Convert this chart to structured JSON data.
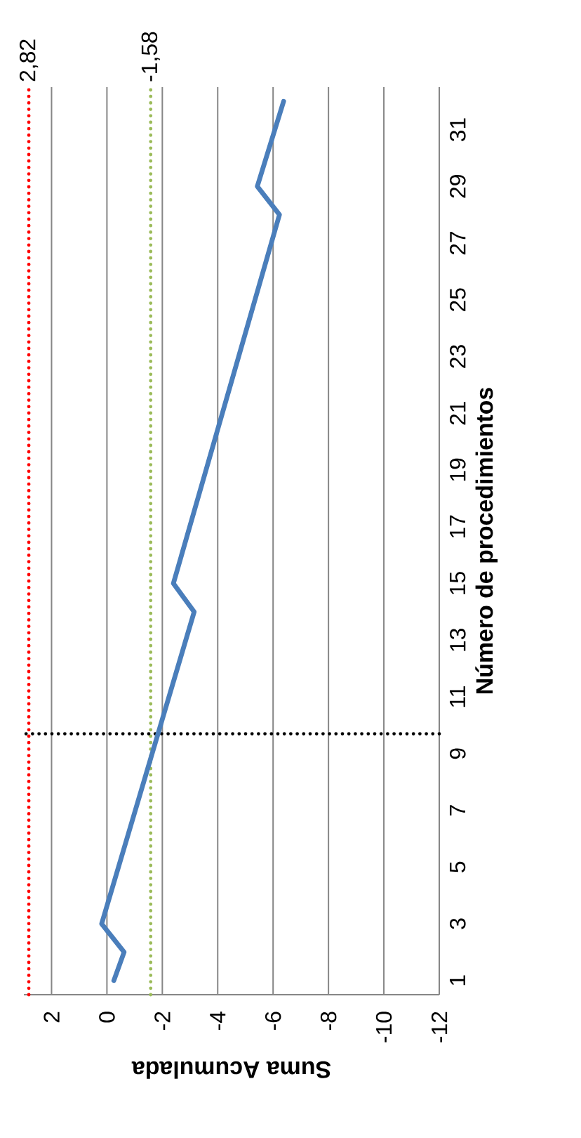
{
  "chart_data": {
    "type": "line",
    "xlabel": "Suma Acumulada",
    "ylabel": "Número de procedimientos",
    "x": [
      -0.25,
      -0.62,
      0.19,
      -3.15,
      -2.4,
      -6.23,
      -5.43,
      -6.38
    ],
    "values": [
      1,
      2,
      3,
      14,
      15,
      28,
      29,
      32
    ],
    "color": "#4a7ebb",
    "xlim": [
      3,
      -12
    ],
    "xticks": [
      {
        "value": 2,
        "label": "2"
      },
      {
        "value": 0,
        "label": "0"
      },
      {
        "value": -2,
        "label": "-2"
      },
      {
        "value": -4,
        "label": "-4"
      },
      {
        "value": -6,
        "label": "-6"
      },
      {
        "value": -8,
        "label": "-8"
      },
      {
        "value": -10,
        "label": "-10"
      },
      {
        "value": -12,
        "label": "-12"
      }
    ],
    "ylim": [
      0.5,
      32.5
    ],
    "yticks": [
      {
        "value": 1,
        "label": "1"
      },
      {
        "value": 3,
        "label": "3"
      },
      {
        "value": 5,
        "label": "5"
      },
      {
        "value": 7,
        "label": "7"
      },
      {
        "value": 9,
        "label": "9"
      },
      {
        "value": 11,
        "label": "11"
      },
      {
        "value": 13,
        "label": "13"
      },
      {
        "value": 15,
        "label": "15"
      },
      {
        "value": 17,
        "label": "17"
      },
      {
        "value": 19,
        "label": "19"
      },
      {
        "value": 21,
        "label": "21"
      },
      {
        "value": 23,
        "label": "23"
      },
      {
        "value": 25,
        "label": "25"
      },
      {
        "value": 27,
        "label": "27"
      },
      {
        "value": 29,
        "label": "29"
      },
      {
        "value": 31,
        "label": "31"
      }
    ],
    "grid": "x",
    "line_style": "solid",
    "ref_lines": [
      {
        "axis": "x",
        "value": 2.82,
        "label": "2,82",
        "color": "#ff0000",
        "line_style": "dotted"
      },
      {
        "axis": "x",
        "value": -1.58,
        "label": "-1,58",
        "color": "#9bbb59",
        "line_style": "dotted"
      },
      {
        "axis": "y",
        "value": 9.7,
        "color": "#000000",
        "line_style": "dotted"
      }
    ]
  }
}
